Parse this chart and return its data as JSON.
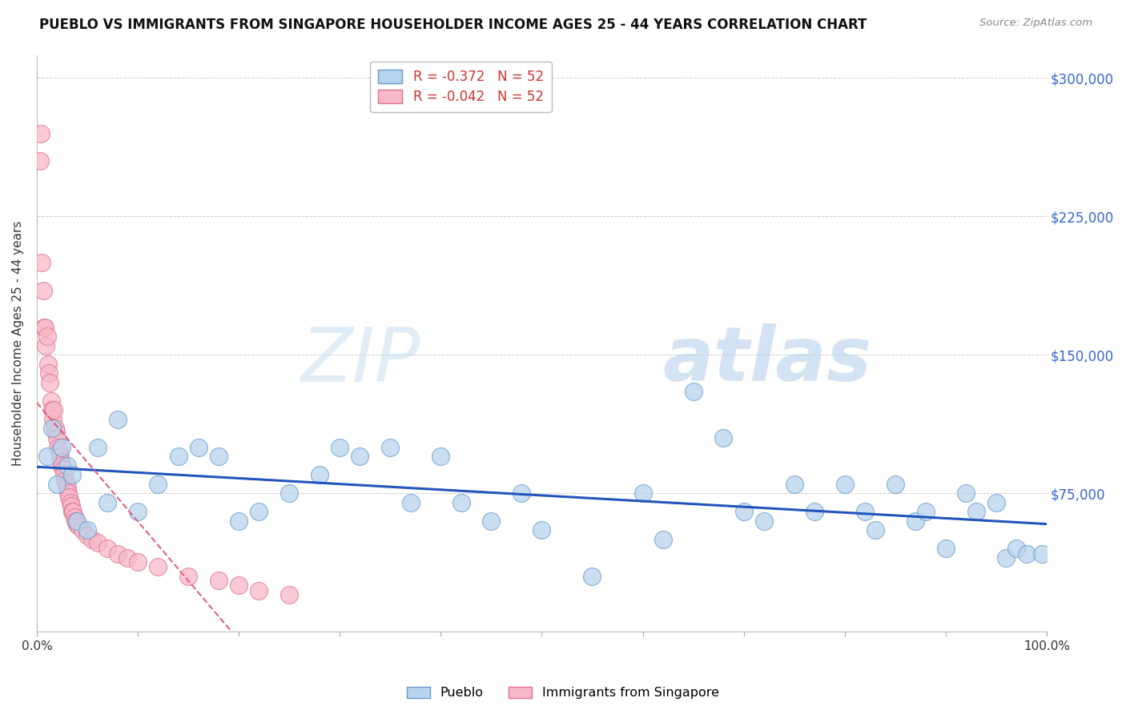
{
  "title": "PUEBLO VS IMMIGRANTS FROM SINGAPORE HOUSEHOLDER INCOME AGES 25 - 44 YEARS CORRELATION CHART",
  "source": "Source: ZipAtlas.com",
  "ylabel": "Householder Income Ages 25 - 44 years",
  "xlim": [
    0.0,
    100.0
  ],
  "ylim": [
    0,
    312500
  ],
  "yticks": [
    0,
    75000,
    150000,
    225000,
    300000
  ],
  "ytick_labels": [
    "",
    "$75,000",
    "$150,000",
    "$225,000",
    "$300,000"
  ],
  "legend_entries": [
    {
      "label": "R = -0.372   N = 52",
      "color": "#b8d4ed"
    },
    {
      "label": "R = -0.042   N = 52",
      "color": "#f7b8c8"
    }
  ],
  "pueblo_color": "#b8d4ed",
  "pueblo_edge": "#6699cc",
  "singapore_color": "#f7b8c8",
  "singapore_edge": "#e07090",
  "trend_pueblo_color": "#2255bb",
  "trend_singapore_color": "#e06080",
  "watermark_zip": "ZIP",
  "watermark_atlas": "atlas",
  "pueblo_x": [
    1.0,
    1.5,
    2.0,
    2.5,
    3.0,
    3.5,
    4.0,
    5.0,
    6.0,
    7.0,
    8.0,
    10.0,
    12.0,
    14.0,
    16.0,
    18.0,
    20.0,
    22.0,
    25.0,
    28.0,
    30.0,
    32.0,
    35.0,
    37.0,
    40.0,
    42.0,
    45.0,
    48.0,
    50.0,
    55.0,
    60.0,
    62.0,
    65.0,
    68.0,
    70.0,
    72.0,
    75.0,
    77.0,
    80.0,
    82.0,
    83.0,
    85.0,
    87.0,
    88.0,
    90.0,
    92.0,
    93.0,
    95.0,
    96.0,
    97.0,
    98.0,
    99.5
  ],
  "pueblo_y": [
    95000,
    110000,
    80000,
    100000,
    90000,
    85000,
    60000,
    55000,
    100000,
    70000,
    115000,
    65000,
    80000,
    95000,
    100000,
    95000,
    60000,
    65000,
    75000,
    85000,
    100000,
    95000,
    100000,
    70000,
    95000,
    70000,
    60000,
    75000,
    55000,
    30000,
    75000,
    50000,
    130000,
    105000,
    65000,
    60000,
    80000,
    65000,
    80000,
    65000,
    55000,
    80000,
    60000,
    65000,
    45000,
    75000,
    65000,
    70000,
    40000,
    45000,
    42000,
    42000
  ],
  "singapore_x": [
    0.3,
    0.4,
    0.5,
    0.6,
    0.7,
    0.8,
    0.9,
    1.0,
    1.1,
    1.2,
    1.3,
    1.4,
    1.5,
    1.6,
    1.7,
    1.8,
    1.9,
    2.0,
    2.1,
    2.2,
    2.3,
    2.4,
    2.5,
    2.6,
    2.7,
    2.8,
    2.9,
    3.0,
    3.1,
    3.2,
    3.3,
    3.4,
    3.5,
    3.6,
    3.7,
    3.8,
    4.0,
    4.2,
    4.5,
    5.0,
    5.5,
    6.0,
    7.0,
    8.0,
    9.0,
    10.0,
    12.0,
    15.0,
    18.0,
    20.0,
    22.0,
    25.0
  ],
  "singapore_y": [
    255000,
    270000,
    200000,
    185000,
    165000,
    165000,
    155000,
    160000,
    145000,
    140000,
    135000,
    125000,
    120000,
    115000,
    120000,
    110000,
    108000,
    105000,
    100000,
    98000,
    95000,
    92000,
    90000,
    88000,
    85000,
    82000,
    80000,
    78000,
    75000,
    73000,
    70000,
    68000,
    65000,
    65000,
    62000,
    60000,
    58000,
    57000,
    55000,
    52000,
    50000,
    48000,
    45000,
    42000,
    40000,
    38000,
    35000,
    30000,
    28000,
    25000,
    22000,
    20000
  ]
}
